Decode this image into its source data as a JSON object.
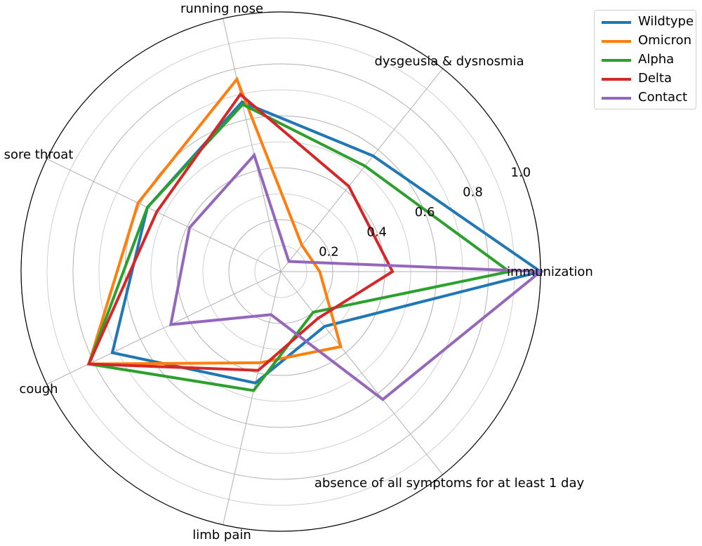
{
  "chart_data": {
    "type": "radar",
    "axes": [
      "immunization",
      "dysgeusia & dysnosmia",
      "running nose",
      "sore throat",
      "cough",
      "limb pain",
      "absence of all symptoms for at least 1 day"
    ],
    "r_ticks": [
      "0.2",
      "0.4",
      "0.6",
      "0.8",
      "1.0"
    ],
    "rlim": [
      0,
      1.0
    ],
    "grid": true,
    "legend_position": "top-right",
    "series": [
      {
        "name": "Wildtype",
        "color": "#1f77b4",
        "values": [
          1.0,
          0.57,
          0.67,
          0.57,
          0.72,
          0.44,
          0.27
        ]
      },
      {
        "name": "Omicron",
        "color": "#ff7f0e",
        "values": [
          0.15,
          0.13,
          0.76,
          0.61,
          0.82,
          0.36,
          0.37
        ]
      },
      {
        "name": "Alpha",
        "color": "#2ca02c",
        "values": [
          0.88,
          0.52,
          0.66,
          0.57,
          0.82,
          0.47,
          0.2
        ]
      },
      {
        "name": "Delta",
        "color": "#d62728",
        "values": [
          0.43,
          0.42,
          0.7,
          0.53,
          0.82,
          0.39,
          0.23
        ]
      },
      {
        "name": "Contact",
        "color": "#9467bd",
        "values": [
          1.0,
          0.05,
          0.46,
          0.39,
          0.47,
          0.17,
          0.63
        ]
      }
    ]
  }
}
